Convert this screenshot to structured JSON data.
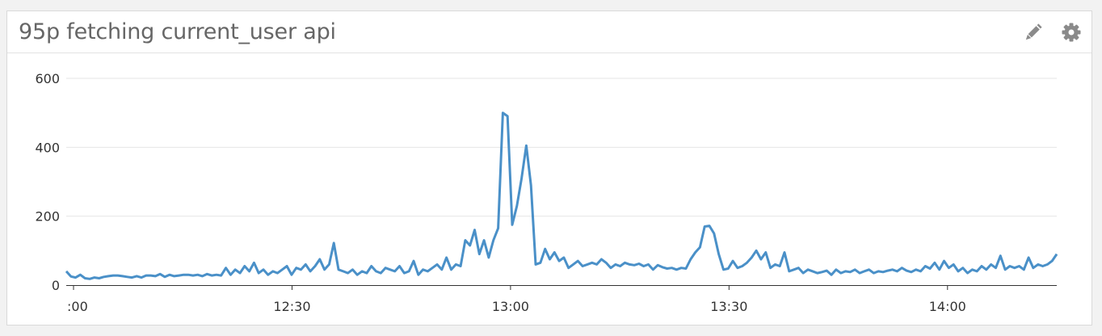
{
  "widget": {
    "title": "95p fetching current_user api",
    "edit_icon": "pencil-icon",
    "settings_icon": "gear-icon"
  },
  "chart_data": {
    "type": "line",
    "title": "95p fetching current_user api",
    "xlabel": "",
    "ylabel": "",
    "ylim": [
      0,
      600
    ],
    "xlim": [
      "11:59",
      "14:15"
    ],
    "yticks": [
      0,
      200,
      400,
      600
    ],
    "xticks": [
      {
        "time": "12:00",
        "label": ":00"
      },
      {
        "time": "12:30",
        "label": "12:30"
      },
      {
        "time": "13:00",
        "label": "13:00"
      },
      {
        "time": "13:30",
        "label": "13:30"
      },
      {
        "time": "14:00",
        "label": "14:00"
      }
    ],
    "grid": true,
    "line_color": "#4a90c8",
    "series": [
      {
        "values": [
          [
            0,
            40
          ],
          [
            1,
            25
          ],
          [
            2,
            22
          ],
          [
            3,
            30
          ],
          [
            4,
            20
          ],
          [
            5,
            18
          ],
          [
            6,
            22
          ],
          [
            7,
            20
          ],
          [
            8,
            24
          ],
          [
            9,
            26
          ],
          [
            10,
            28
          ],
          [
            11,
            28
          ],
          [
            12,
            26
          ],
          [
            13,
            24
          ],
          [
            14,
            22
          ],
          [
            15,
            26
          ],
          [
            16,
            22
          ],
          [
            17,
            28
          ],
          [
            18,
            28
          ],
          [
            19,
            26
          ],
          [
            20,
            32
          ],
          [
            21,
            24
          ],
          [
            22,
            30
          ],
          [
            23,
            26
          ],
          [
            24,
            28
          ],
          [
            25,
            30
          ],
          [
            26,
            30
          ],
          [
            27,
            28
          ],
          [
            28,
            30
          ],
          [
            29,
            26
          ],
          [
            30,
            32
          ],
          [
            31,
            28
          ],
          [
            32,
            30
          ],
          [
            33,
            28
          ],
          [
            34,
            50
          ],
          [
            35,
            30
          ],
          [
            36,
            45
          ],
          [
            37,
            35
          ],
          [
            38,
            55
          ],
          [
            39,
            40
          ],
          [
            40,
            65
          ],
          [
            41,
            35
          ],
          [
            42,
            45
          ],
          [
            43,
            30
          ],
          [
            44,
            40
          ],
          [
            45,
            35
          ],
          [
            46,
            45
          ],
          [
            47,
            55
          ],
          [
            48,
            30
          ],
          [
            49,
            50
          ],
          [
            50,
            45
          ],
          [
            51,
            60
          ],
          [
            52,
            40
          ],
          [
            53,
            55
          ],
          [
            54,
            75
          ],
          [
            55,
            45
          ],
          [
            56,
            60
          ],
          [
            57,
            122
          ],
          [
            58,
            45
          ],
          [
            59,
            40
          ],
          [
            60,
            35
          ],
          [
            61,
            45
          ],
          [
            62,
            30
          ],
          [
            63,
            40
          ],
          [
            64,
            35
          ],
          [
            65,
            55
          ],
          [
            66,
            40
          ],
          [
            67,
            35
          ],
          [
            68,
            50
          ],
          [
            69,
            45
          ],
          [
            70,
            40
          ],
          [
            71,
            55
          ],
          [
            72,
            35
          ],
          [
            73,
            40
          ],
          [
            74,
            70
          ],
          [
            75,
            30
          ],
          [
            76,
            45
          ],
          [
            77,
            40
          ],
          [
            78,
            50
          ],
          [
            79,
            60
          ],
          [
            80,
            45
          ],
          [
            81,
            80
          ],
          [
            82,
            45
          ],
          [
            83,
            60
          ],
          [
            84,
            55
          ],
          [
            85,
            130
          ],
          [
            86,
            115
          ],
          [
            87,
            160
          ],
          [
            88,
            90
          ],
          [
            89,
            130
          ],
          [
            90,
            80
          ],
          [
            91,
            130
          ],
          [
            92,
            165
          ],
          [
            93,
            500
          ],
          [
            94,
            490
          ],
          [
            95,
            175
          ],
          [
            96,
            230
          ],
          [
            97,
            310
          ],
          [
            98,
            405
          ],
          [
            99,
            290
          ],
          [
            100,
            60
          ],
          [
            101,
            65
          ],
          [
            102,
            105
          ],
          [
            103,
            75
          ],
          [
            104,
            95
          ],
          [
            105,
            70
          ],
          [
            106,
            80
          ],
          [
            107,
            50
          ],
          [
            108,
            60
          ],
          [
            109,
            70
          ],
          [
            110,
            55
          ],
          [
            111,
            60
          ],
          [
            112,
            65
          ],
          [
            113,
            60
          ],
          [
            114,
            75
          ],
          [
            115,
            65
          ],
          [
            116,
            50
          ],
          [
            117,
            60
          ],
          [
            118,
            55
          ],
          [
            119,
            65
          ],
          [
            120,
            60
          ],
          [
            121,
            58
          ],
          [
            122,
            62
          ],
          [
            123,
            55
          ],
          [
            124,
            60
          ],
          [
            125,
            45
          ],
          [
            126,
            58
          ],
          [
            127,
            52
          ],
          [
            128,
            48
          ],
          [
            129,
            50
          ],
          [
            130,
            45
          ],
          [
            131,
            50
          ],
          [
            132,
            48
          ],
          [
            133,
            75
          ],
          [
            134,
            95
          ],
          [
            135,
            110
          ],
          [
            136,
            170
          ],
          [
            137,
            172
          ],
          [
            138,
            150
          ],
          [
            139,
            90
          ],
          [
            140,
            45
          ],
          [
            141,
            48
          ],
          [
            142,
            70
          ],
          [
            143,
            50
          ],
          [
            144,
            55
          ],
          [
            145,
            65
          ],
          [
            146,
            80
          ],
          [
            147,
            100
          ],
          [
            148,
            75
          ],
          [
            149,
            95
          ],
          [
            150,
            50
          ],
          [
            151,
            60
          ],
          [
            152,
            55
          ],
          [
            153,
            95
          ],
          [
            154,
            40
          ],
          [
            155,
            45
          ],
          [
            156,
            50
          ],
          [
            157,
            35
          ],
          [
            158,
            45
          ],
          [
            159,
            40
          ],
          [
            160,
            35
          ],
          [
            161,
            38
          ],
          [
            162,
            42
          ],
          [
            163,
            30
          ],
          [
            164,
            45
          ],
          [
            165,
            35
          ],
          [
            166,
            40
          ],
          [
            167,
            38
          ],
          [
            168,
            45
          ],
          [
            169,
            35
          ],
          [
            170,
            40
          ],
          [
            171,
            45
          ],
          [
            172,
            35
          ],
          [
            173,
            40
          ],
          [
            174,
            38
          ],
          [
            175,
            42
          ],
          [
            176,
            45
          ],
          [
            177,
            40
          ],
          [
            178,
            50
          ],
          [
            179,
            42
          ],
          [
            180,
            38
          ],
          [
            181,
            45
          ],
          [
            182,
            40
          ],
          [
            183,
            55
          ],
          [
            184,
            48
          ],
          [
            185,
            65
          ],
          [
            186,
            45
          ],
          [
            187,
            70
          ],
          [
            188,
            50
          ],
          [
            189,
            60
          ],
          [
            190,
            40
          ],
          [
            191,
            50
          ],
          [
            192,
            35
          ],
          [
            193,
            45
          ],
          [
            194,
            40
          ],
          [
            195,
            55
          ],
          [
            196,
            45
          ],
          [
            197,
            60
          ],
          [
            198,
            50
          ],
          [
            199,
            85
          ],
          [
            200,
            45
          ],
          [
            201,
            55
          ],
          [
            202,
            50
          ],
          [
            203,
            55
          ],
          [
            204,
            45
          ],
          [
            205,
            80
          ],
          [
            206,
            50
          ],
          [
            207,
            60
          ],
          [
            208,
            55
          ],
          [
            209,
            60
          ],
          [
            210,
            70
          ],
          [
            211,
            90
          ]
        ]
      }
    ]
  }
}
